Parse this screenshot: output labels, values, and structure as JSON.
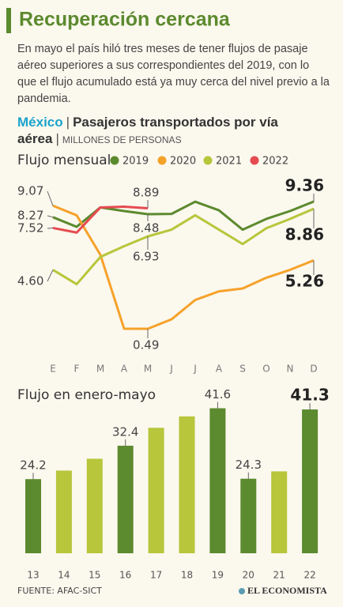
{
  "header": {
    "title": "Recuperación cercana",
    "text": "En mayo el país hiló tres meses de tener flujos de pasaje aéreo superiores a sus correspondientes del 2019, con lo que el flujo acumulado está ya muy cerca del nivel previo a la pandemia."
  },
  "heading": {
    "region": "México",
    "subject": "Pasajeros transportados por vía aérea",
    "unit": "MILLONES DE PERSONAS"
  },
  "source": "FUENTE: AFAC-SICT",
  "brand": "EL ECONOMISTA",
  "chart_data": [
    {
      "type": "line",
      "title": "Flujo mensual",
      "categories": [
        "E",
        "F",
        "M",
        "A",
        "M",
        "J",
        "J",
        "A",
        "S",
        "O",
        "N",
        "D"
      ],
      "ylim": [
        0,
        10
      ],
      "series": [
        {
          "name": "2019",
          "color": "#5c8a2e",
          "values": [
            8.27,
            7.6,
            8.95,
            8.7,
            8.48,
            8.5,
            9.35,
            8.75,
            7.4,
            8.15,
            8.7,
            9.36
          ],
          "value_labels": [
            "8.27",
            null,
            null,
            null,
            "8.48",
            null,
            null,
            null,
            null,
            null,
            null,
            "9.36"
          ]
        },
        {
          "name": "2020",
          "color": "#f5a22a",
          "values": [
            9.07,
            8.4,
            5.65,
            0.5,
            0.49,
            1.15,
            2.5,
            3.1,
            3.3,
            4.05,
            4.6,
            5.26
          ],
          "value_labels": [
            "9.07",
            null,
            null,
            null,
            "0.49",
            null,
            null,
            null,
            null,
            null,
            null,
            "5.26"
          ]
        },
        {
          "name": "2021",
          "color": "#b7c63a",
          "values": [
            4.6,
            3.6,
            5.5,
            6.25,
            6.93,
            7.4,
            8.4,
            7.4,
            6.4,
            7.5,
            8.15,
            8.86
          ],
          "value_labels": [
            "4.60",
            null,
            null,
            null,
            "6.93",
            null,
            null,
            null,
            null,
            null,
            null,
            "8.86"
          ]
        },
        {
          "name": "2022",
          "color": "#e64b50",
          "values": [
            7.52,
            7.2,
            8.95,
            9.0,
            8.89,
            null,
            null,
            null,
            null,
            null,
            null,
            null
          ],
          "value_labels": [
            "7.52",
            null,
            null,
            null,
            "8.89",
            null,
            null,
            null,
            null,
            null,
            null,
            null
          ]
        }
      ]
    },
    {
      "type": "bar",
      "title": "Flujo en enero-mayo",
      "categories": [
        "13",
        "14",
        "15",
        "16",
        "17",
        "18",
        "19",
        "20",
        "21",
        "22"
      ],
      "values": [
        24.2,
        26.3,
        29.2,
        32.4,
        36.8,
        39.6,
        41.6,
        24.3,
        26.1,
        41.3
      ],
      "value_labels": [
        "24.2",
        null,
        null,
        "32.4",
        null,
        null,
        "41.6",
        "24.3",
        null,
        "41.3"
      ],
      "colors": [
        "#5c8a2e",
        "#b7c63a",
        "#b7c63a",
        "#5c8a2e",
        "#b7c63a",
        "#b7c63a",
        "#5c8a2e",
        "#5c8a2e",
        "#b7c63a",
        "#5c8a2e"
      ],
      "ylim": [
        6,
        45
      ]
    }
  ]
}
